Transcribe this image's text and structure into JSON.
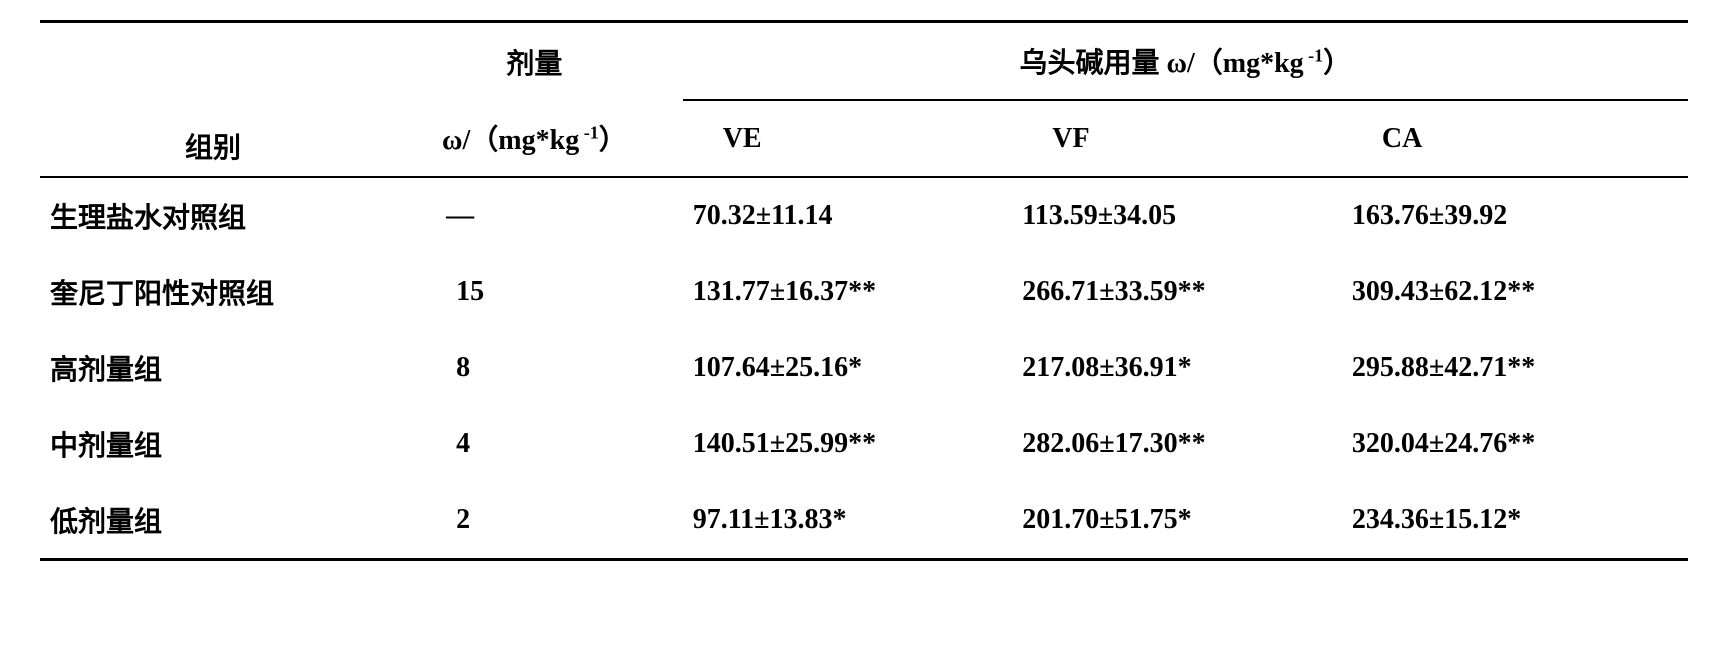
{
  "table": {
    "headers": {
      "group": "组别",
      "dose_label": "剂量",
      "dose_unit_prefix": "ω/（mg*kg",
      "dose_unit_exp": " -1",
      "dose_unit_suffix": "）",
      "main_header_prefix": "乌头碱用量 ω/（mg*kg",
      "main_header_exp": " -1",
      "main_header_suffix": "）",
      "ve": "VE",
      "vf": "VF",
      "ca": "CA"
    },
    "rows": [
      {
        "group": "生理盐水对照组",
        "dose": "—",
        "ve": "70.32±11.14",
        "vf": "113.59±34.05",
        "ca": "163.76±39.92"
      },
      {
        "group": "奎尼丁阳性对照组",
        "dose": "15",
        "ve": "131.77±16.37**",
        "vf": "266.71±33.59**",
        "ca": "309.43±62.12**"
      },
      {
        "group": "高剂量组",
        "dose": "8",
        "ve": "107.64±25.16*",
        "vf": "217.08±36.91*",
        "ca": "295.88±42.71**"
      },
      {
        "group": "中剂量组",
        "dose": "4",
        "ve": "140.51±25.99**",
        "vf": "282.06±17.30**",
        "ca": "320.04±24.76**"
      },
      {
        "group": "低剂量组",
        "dose": "2",
        "ve": "97.11±13.83*",
        "vf": "201.70±51.75*",
        "ca": "234.36±15.12*"
      }
    ]
  },
  "styling": {
    "background_color": "#ffffff",
    "border_color": "#000000",
    "font_color": "#000000",
    "font_size_main": 28,
    "font_size_sup": 18,
    "font_weight": "bold",
    "border_top_width": 3,
    "border_sub_width": 2,
    "border_bottom_width": 3
  }
}
